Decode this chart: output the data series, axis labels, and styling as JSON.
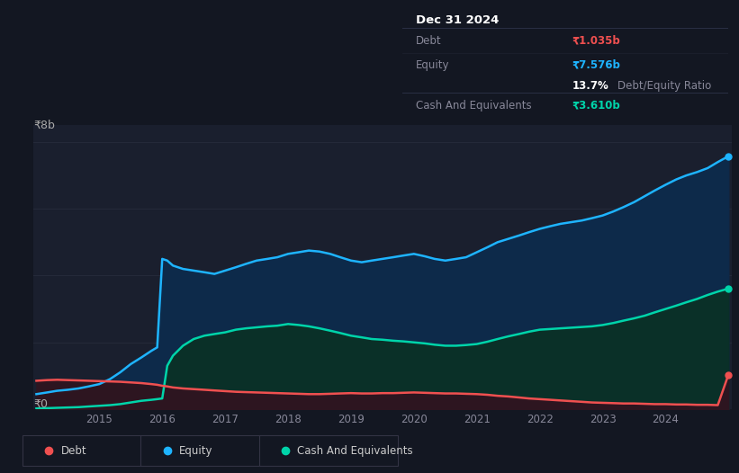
{
  "background_color": "#131722",
  "plot_bg_color": "#1a1f2e",
  "ylabel_8b": "₹8b",
  "ylabel_0": "₹0",
  "equity_color": "#1eb4ff",
  "equity_fill_color": "#0d2a4a",
  "debt_color": "#f05050",
  "debt_fill_color": "#2d1520",
  "cash_color": "#00d4aa",
  "cash_fill_color": "#0a3028",
  "grid_color": "#252a3a",
  "years": [
    2014.0,
    2014.17,
    2014.33,
    2014.5,
    2014.67,
    2014.83,
    2015.0,
    2015.17,
    2015.33,
    2015.5,
    2015.67,
    2015.83,
    2015.92,
    2016.0,
    2016.08,
    2016.17,
    2016.33,
    2016.5,
    2016.67,
    2016.83,
    2017.0,
    2017.17,
    2017.33,
    2017.5,
    2017.67,
    2017.83,
    2018.0,
    2018.17,
    2018.33,
    2018.5,
    2018.67,
    2018.83,
    2019.0,
    2019.17,
    2019.33,
    2019.5,
    2019.67,
    2019.83,
    2020.0,
    2020.17,
    2020.33,
    2020.5,
    2020.67,
    2020.83,
    2021.0,
    2021.17,
    2021.33,
    2021.5,
    2021.67,
    2021.83,
    2022.0,
    2022.17,
    2022.33,
    2022.5,
    2022.67,
    2022.83,
    2023.0,
    2023.17,
    2023.33,
    2023.5,
    2023.67,
    2023.83,
    2024.0,
    2024.17,
    2024.33,
    2024.5,
    2024.67,
    2024.83,
    2025.0
  ],
  "equity": [
    0.45,
    0.5,
    0.55,
    0.58,
    0.62,
    0.68,
    0.75,
    0.9,
    1.1,
    1.35,
    1.55,
    1.75,
    1.85,
    4.5,
    4.45,
    4.3,
    4.2,
    4.15,
    4.1,
    4.05,
    4.15,
    4.25,
    4.35,
    4.45,
    4.5,
    4.55,
    4.65,
    4.7,
    4.75,
    4.72,
    4.65,
    4.55,
    4.45,
    4.4,
    4.45,
    4.5,
    4.55,
    4.6,
    4.65,
    4.58,
    4.5,
    4.45,
    4.5,
    4.55,
    4.7,
    4.85,
    5.0,
    5.1,
    5.2,
    5.3,
    5.4,
    5.48,
    5.55,
    5.6,
    5.65,
    5.72,
    5.8,
    5.92,
    6.05,
    6.2,
    6.38,
    6.55,
    6.72,
    6.88,
    7.0,
    7.1,
    7.22,
    7.4,
    7.576
  ],
  "debt": [
    0.85,
    0.87,
    0.88,
    0.87,
    0.86,
    0.85,
    0.84,
    0.83,
    0.82,
    0.8,
    0.78,
    0.75,
    0.73,
    0.7,
    0.68,
    0.65,
    0.62,
    0.6,
    0.58,
    0.56,
    0.54,
    0.52,
    0.51,
    0.5,
    0.49,
    0.48,
    0.47,
    0.46,
    0.45,
    0.45,
    0.46,
    0.47,
    0.48,
    0.47,
    0.47,
    0.48,
    0.48,
    0.49,
    0.5,
    0.49,
    0.48,
    0.47,
    0.47,
    0.46,
    0.45,
    0.43,
    0.4,
    0.38,
    0.35,
    0.32,
    0.3,
    0.28,
    0.26,
    0.24,
    0.22,
    0.2,
    0.19,
    0.18,
    0.17,
    0.17,
    0.16,
    0.15,
    0.15,
    0.14,
    0.14,
    0.13,
    0.13,
    0.12,
    1.035
  ],
  "cash": [
    0.02,
    0.03,
    0.04,
    0.05,
    0.06,
    0.08,
    0.1,
    0.12,
    0.15,
    0.2,
    0.25,
    0.28,
    0.3,
    0.32,
    1.3,
    1.6,
    1.9,
    2.1,
    2.2,
    2.25,
    2.3,
    2.38,
    2.42,
    2.45,
    2.48,
    2.5,
    2.55,
    2.52,
    2.48,
    2.42,
    2.35,
    2.28,
    2.2,
    2.15,
    2.1,
    2.08,
    2.05,
    2.03,
    2.0,
    1.97,
    1.93,
    1.9,
    1.9,
    1.92,
    1.95,
    2.02,
    2.1,
    2.18,
    2.25,
    2.32,
    2.38,
    2.4,
    2.42,
    2.44,
    2.46,
    2.48,
    2.52,
    2.58,
    2.65,
    2.72,
    2.8,
    2.9,
    3.0,
    3.1,
    3.2,
    3.3,
    3.42,
    3.52,
    3.61
  ],
  "x_ticks": [
    2015,
    2016,
    2017,
    2018,
    2019,
    2020,
    2021,
    2022,
    2023,
    2024
  ],
  "ylim": [
    0,
    8.5
  ],
  "tooltip": {
    "title": "Dec 31 2024",
    "debt_label": "Debt",
    "debt_value": "₹1.035b",
    "equity_label": "Equity",
    "equity_value": "₹7.576b",
    "ratio_pct": "13.7%",
    "ratio_label": "Debt/Equity Ratio",
    "cash_label": "Cash And Equivalents",
    "cash_value": "₹3.610b"
  },
  "legend_items": [
    {
      "label": "Debt",
      "color": "#f05050"
    },
    {
      "label": "Equity",
      "color": "#1eb4ff"
    },
    {
      "label": "Cash And Equivalents",
      "color": "#00d4aa"
    }
  ]
}
